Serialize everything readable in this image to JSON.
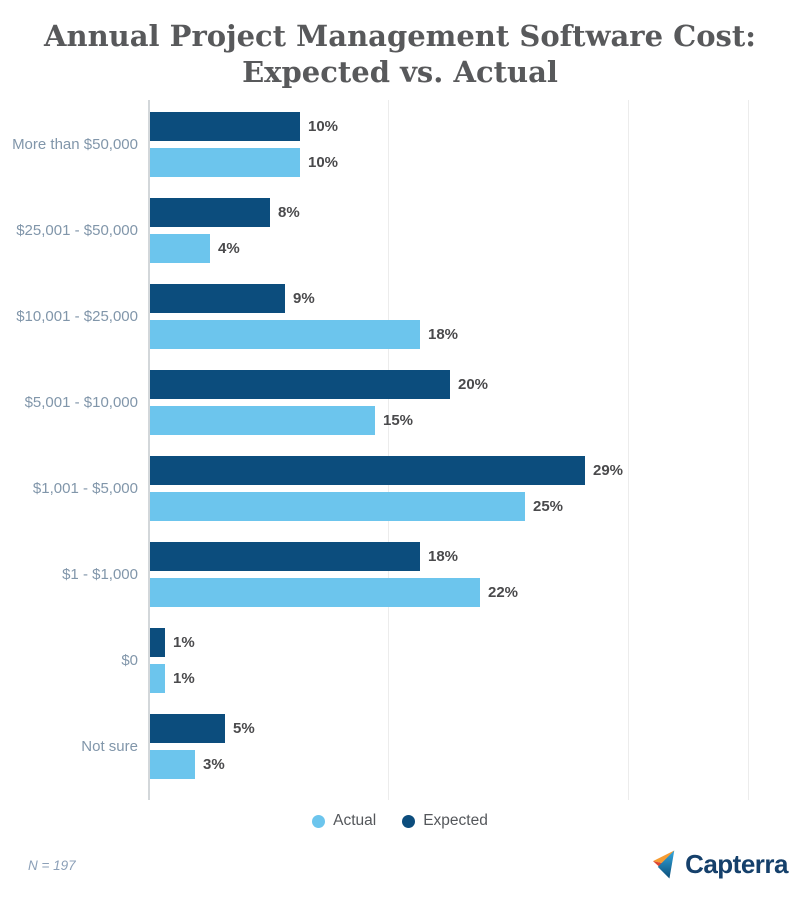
{
  "title": {
    "line1": "Annual Project Management Software Cost:",
    "line2": "Expected vs. Actual"
  },
  "chart_data": {
    "type": "bar",
    "orientation": "horizontal",
    "title": "Annual Project Management Software Cost: Expected vs. Actual",
    "categories": [
      "More than $50,000",
      "$25,001 - $50,000",
      "$10,001 - $25,000",
      "$5,001 - $10,000",
      "$1,001 - $5,000",
      "$1 - $1,000",
      "$0",
      "Not sure"
    ],
    "series": [
      {
        "name": "Expected",
        "color": "#0C4D7D",
        "values": [
          10,
          8,
          9,
          20,
          29,
          18,
          1,
          5
        ]
      },
      {
        "name": "Actual",
        "color": "#6CC5ED",
        "values": [
          10,
          4,
          18,
          15,
          25,
          22,
          1,
          3
        ]
      }
    ],
    "value_suffix": "%",
    "xlim": [
      0,
      40
    ],
    "gridline_ticks": [
      16,
      32,
      40
    ],
    "grid": true,
    "legend_position": "bottom",
    "legend_order": [
      "Actual",
      "Expected"
    ]
  },
  "footer": {
    "sample_note": "N = 197",
    "brand": "Capterra"
  },
  "colors": {
    "expected": "#0C4D7D",
    "actual": "#6CC5ED",
    "title_text": "#58595B",
    "category_text": "#8196AA",
    "value_text": "#4A4A4C",
    "axis_line": "#D3D7DA",
    "gridline": "#ECECEC",
    "brand_navy": "#15406B",
    "logo_orange": "#F79C33",
    "logo_red": "#DD4833",
    "logo_blue_light": "#35A8DF",
    "logo_blue_dark": "#0B4E79"
  }
}
